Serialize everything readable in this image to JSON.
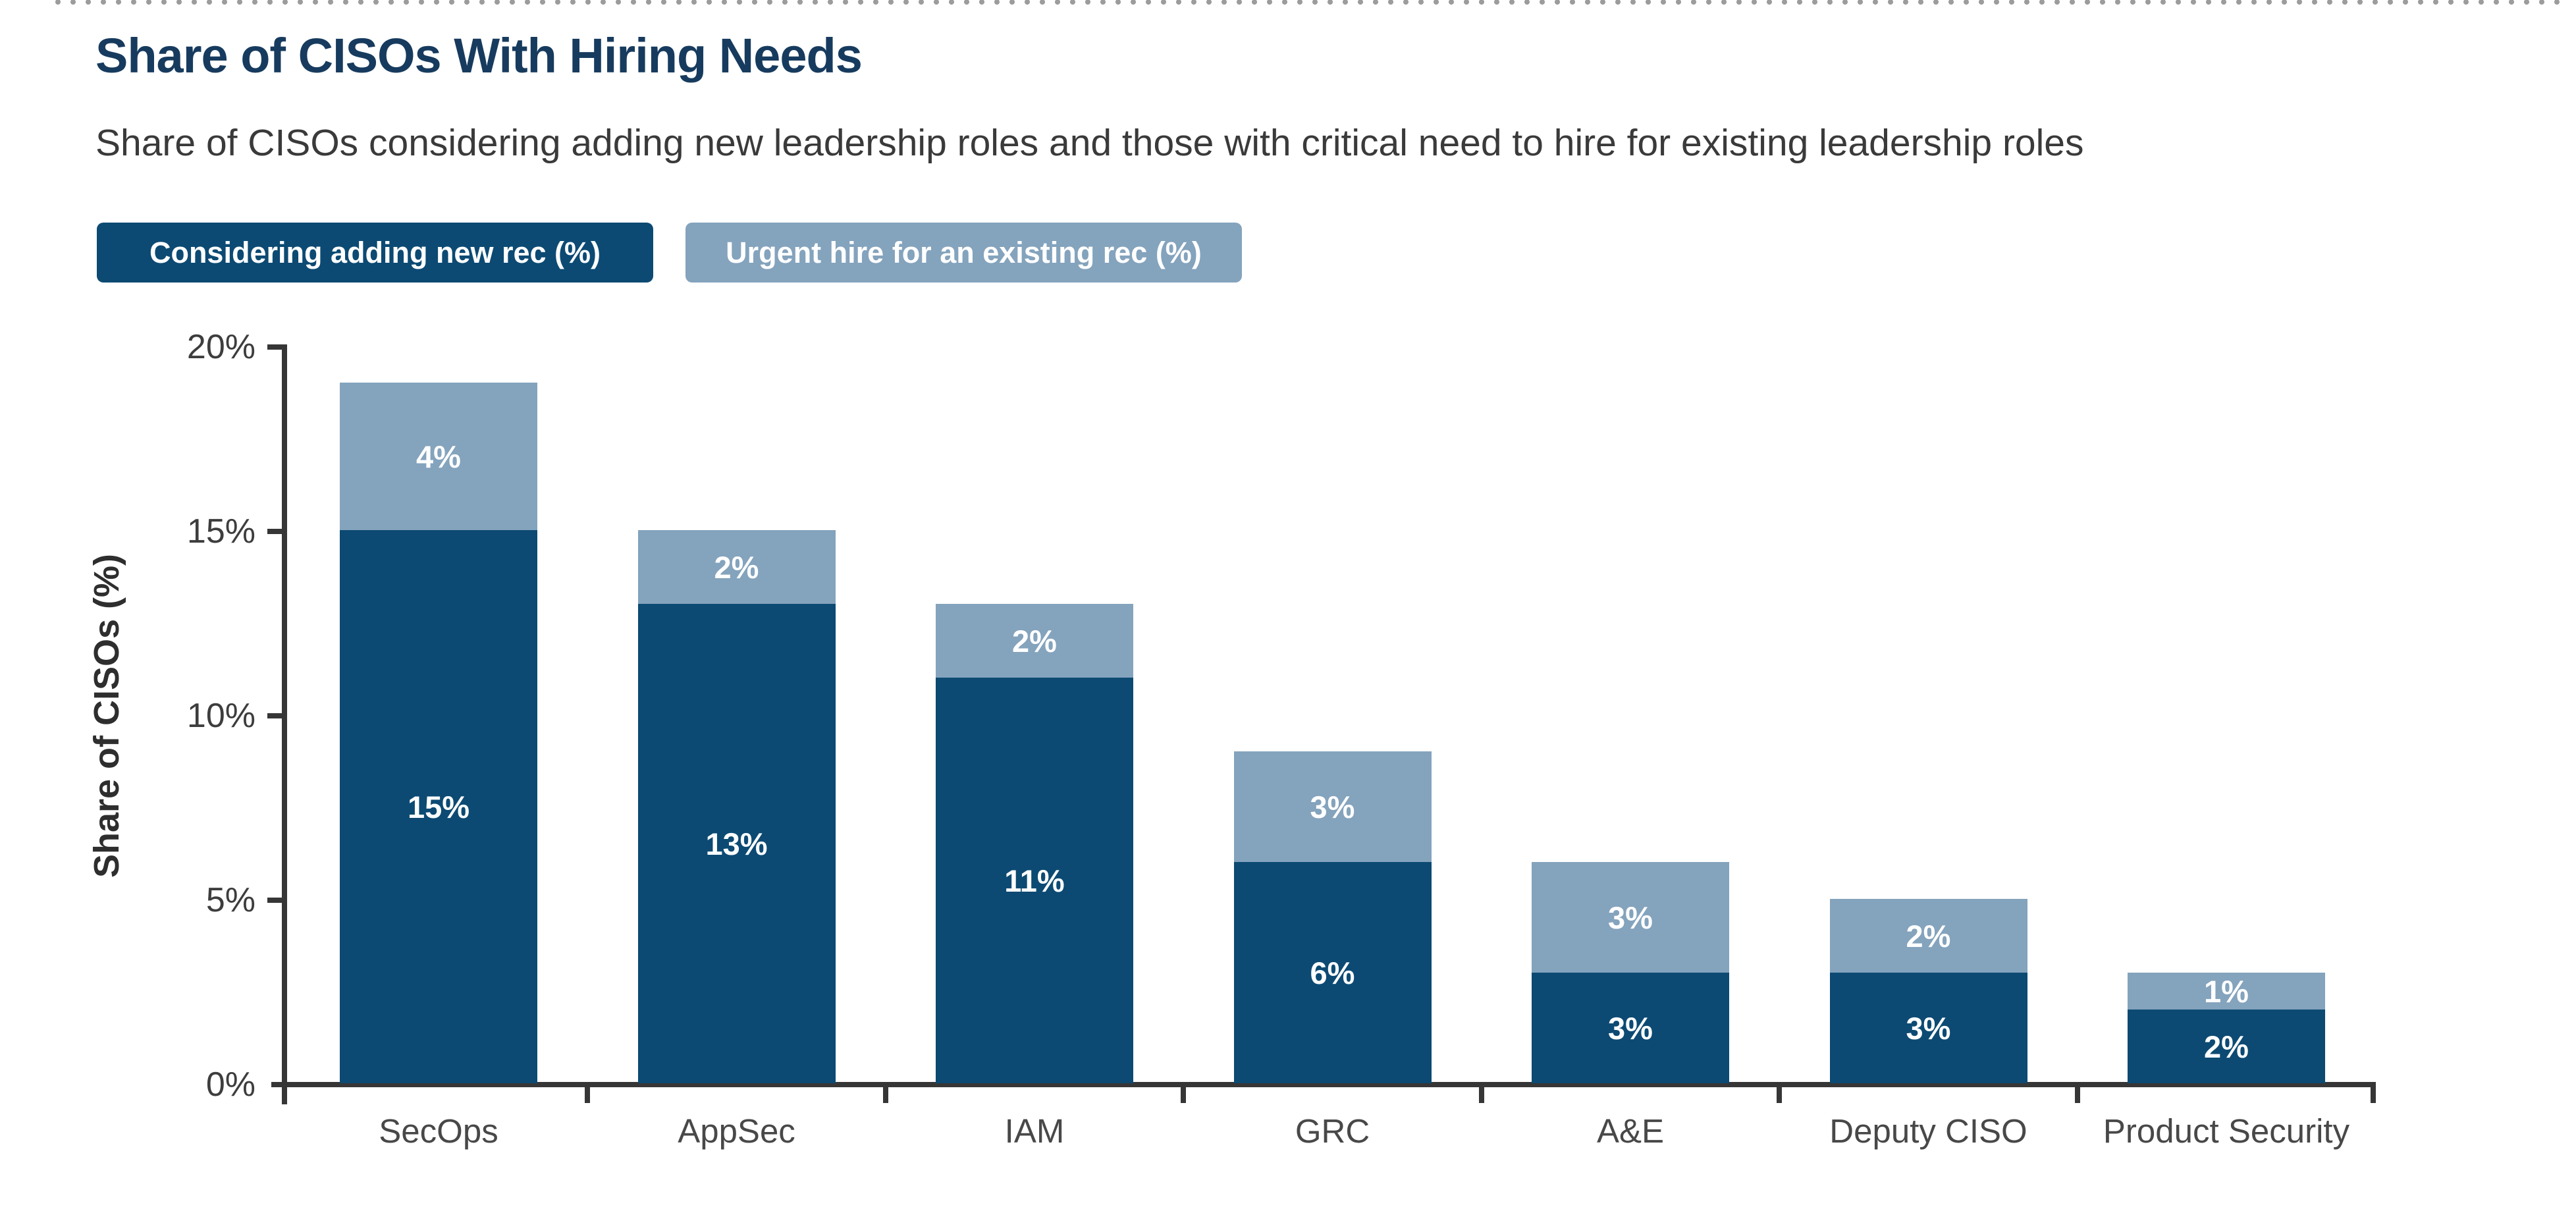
{
  "header": {
    "title": "Share of CISOs With Hiring Needs",
    "subtitle": "Share of CISOs considering adding new leadership roles and those with critical need to hire for existing leadership roles"
  },
  "legend": {
    "items": [
      {
        "label": "Considering adding new rec (%)",
        "color": "#0c4a73"
      },
      {
        "label": "Urgent hire for an existing rec (%)",
        "color": "#84a3bd"
      }
    ]
  },
  "colors": {
    "navy": "#0c4a73",
    "steel_blue": "#84a3bd",
    "title_navy": "#173b5e",
    "subtitle_gray": "#3a3a3a",
    "axis_gray": "#363636",
    "tick_label_gray": "#3d3d3d",
    "category_label_gray": "#484848",
    "bar_label_white": "#ffffff",
    "dotted_border_gray": "#9c9c9c"
  },
  "chart_data": {
    "type": "bar",
    "stacked": true,
    "title": "Share of CISOs With Hiring Needs",
    "xlabel": "",
    "ylabel": "Share of CISOs (%)",
    "ylim": [
      0,
      20
    ],
    "grid": false,
    "legend_position": "top-left",
    "value_suffix": "%",
    "categories": [
      "SecOps",
      "AppSec",
      "IAM",
      "GRC",
      "A&E",
      "Deputy CISO",
      "Product Security"
    ],
    "series": [
      {
        "name": "Considering adding new rec (%)",
        "color": "#0c4a73",
        "values": [
          15,
          13,
          11,
          6,
          3,
          3,
          2
        ]
      },
      {
        "name": "Urgent hire for an existing rec (%)",
        "color": "#84a3bd",
        "values": [
          4,
          2,
          2,
          3,
          3,
          2,
          1
        ]
      }
    ],
    "totals": [
      19,
      15,
      13,
      9,
      6,
      5,
      3
    ],
    "yticks": [
      {
        "label": "0%",
        "value": 0
      },
      {
        "label": "5%",
        "value": 5
      },
      {
        "label": "10%",
        "value": 10
      },
      {
        "label": "15%",
        "value": 15
      },
      {
        "label": "20%",
        "value": 20
      }
    ]
  }
}
